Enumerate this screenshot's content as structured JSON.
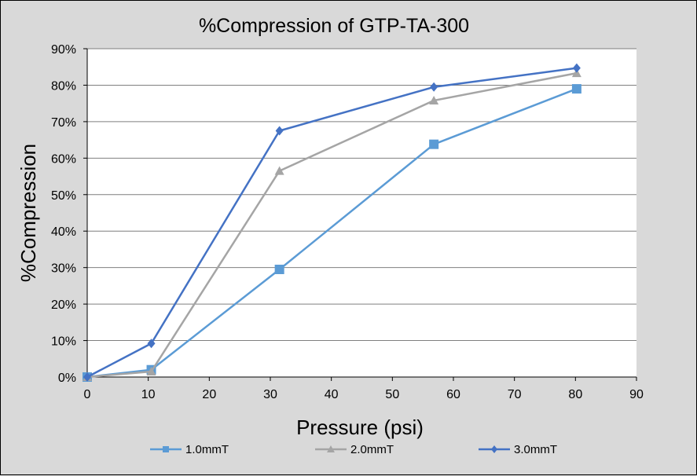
{
  "chart_data": {
    "type": "scatter",
    "title": "%Compression of GTP-TA-300",
    "xlabel": "Pressure (psi)",
    "ylabel": "%Compression",
    "xlim": [
      0,
      90
    ],
    "ylim": [
      0,
      90
    ],
    "x_ticks": [
      "0",
      "10",
      "20",
      "30",
      "40",
      "50",
      "60",
      "70",
      "80",
      "90"
    ],
    "y_ticks": [
      "0%",
      "10%",
      "20%",
      "30%",
      "40%",
      "50%",
      "60%",
      "70%",
      "80%",
      "90%"
    ],
    "grid": "horizontal",
    "legend_position": "bottom",
    "series": [
      {
        "name": "1.0mmT",
        "color": "#5b9bd5",
        "marker": "square",
        "x": [
          0,
          10.5,
          31.5,
          56.8,
          80.2
        ],
        "y": [
          0,
          2,
          29.5,
          63.8,
          79
        ]
      },
      {
        "name": "2.0mmT",
        "color": "#a5a5a5",
        "marker": "triangle",
        "x": [
          0,
          10.5,
          31.5,
          56.8,
          80.2
        ],
        "y": [
          0,
          1.5,
          56.5,
          75.8,
          83.3
        ]
      },
      {
        "name": "3.0mmT",
        "color": "#4472c4",
        "marker": "diamond",
        "x": [
          0,
          10.5,
          31.5,
          56.8,
          80.2
        ],
        "y": [
          0,
          9.2,
          67.5,
          79.5,
          84.7
        ]
      }
    ]
  }
}
